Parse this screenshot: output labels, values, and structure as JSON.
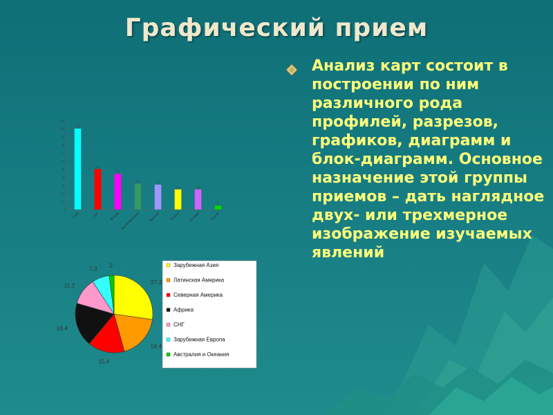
{
  "slide": {
    "title": "Графический прием",
    "bullet_text": "Анализ карт состоит в построении по ним различного рода профилей, разрезов, графиков, диаграмм и блок-диаграмм. Основное назначение этой группы приемов – дать наглядное двух- или трехмерное изображение изучаемых явлений",
    "bullet_icon": "diamond-icon",
    "colors": {
      "title": "#f0e8cc",
      "text": "#ffff7a",
      "background": "#167c82"
    }
  },
  "chart_data": [
    {
      "type": "bar",
      "categories": [
        "США",
        "ФРГ",
        "Япония",
        "Великобритания",
        "Франция",
        "Италия",
        "Испания",
        "Россия"
      ],
      "values": [
        100,
        50,
        44,
        32,
        31,
        25,
        25,
        5
      ],
      "colors": [
        "#00ffff",
        "#ff0000",
        "#ff00ff",
        "#339966",
        "#9999ff",
        "#ffff00",
        "#cc66ff",
        "#00dd00"
      ],
      "ylim": [
        0,
        110
      ],
      "yticks": [
        0,
        10,
        20,
        30,
        40,
        50,
        60,
        70,
        80,
        90,
        100,
        110
      ],
      "title": "",
      "xlabel": "",
      "ylabel": "",
      "grid": false,
      "legend": "none"
    },
    {
      "type": "pie",
      "labels": [
        "Зарубежная Азия",
        "Латинская Америка",
        "Северная Америка",
        "Африка",
        "СНГ",
        "Зарубежная Европа",
        "Австралия и Океания"
      ],
      "values": [
        27.3,
        18.4,
        15.4,
        18.4,
        11.2,
        7.3,
        2
      ],
      "colors": [
        "#ffff00",
        "#ff9900",
        "#ff0000",
        "#111111",
        "#ff99cc",
        "#33ffff",
        "#00cc00"
      ],
      "legend": "right",
      "title": ""
    }
  ]
}
